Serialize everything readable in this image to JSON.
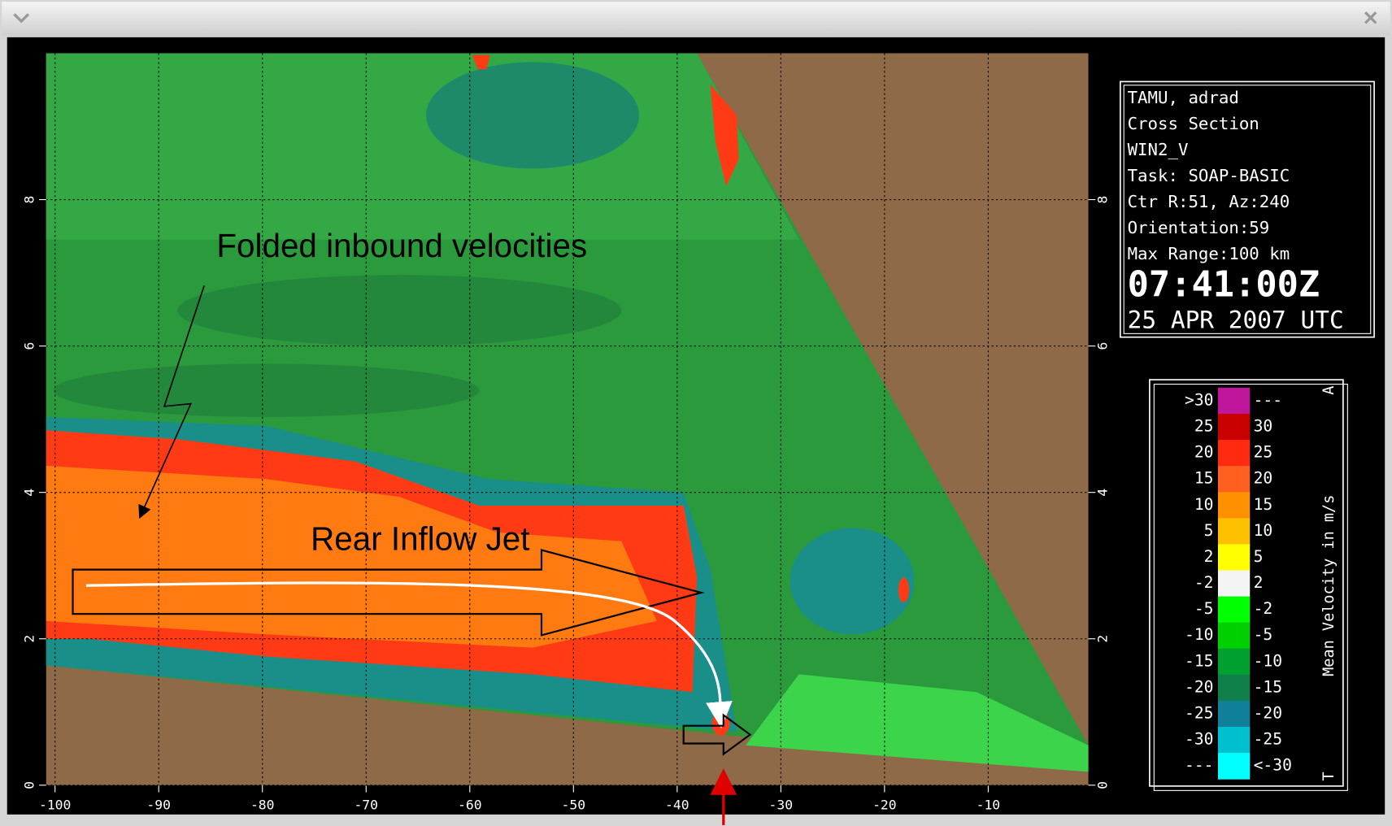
{
  "info": {
    "lines": [
      "TAMU, adrad",
      "Cross Section",
      "WIN2_V",
      "Task: SOAP-BASIC",
      "Ctr R:51, Az:240",
      "Orientation:59",
      "Max Range:100 km"
    ],
    "time": "07:41:00Z",
    "date": "25 APR 2007 UTC"
  },
  "annotations": {
    "folded": "Folded inbound velocities",
    "jet": "Rear Inflow Jet"
  },
  "x_axis": {
    "labels": [
      "-100",
      "-90",
      "-80",
      "-70",
      "-60",
      "-50",
      "-40",
      "-30",
      "-20",
      "-10"
    ]
  },
  "y_axis": {
    "labels": [
      "0",
      "2",
      "4",
      "6",
      "8"
    ]
  },
  "legend": {
    "title": "Mean Velocity in m/s",
    "top_mark": "A",
    "bottom_mark": "T",
    "left": [
      ">30",
      "25",
      "20",
      "15",
      "10",
      "5",
      "2",
      "-2",
      "-5",
      "-10",
      "-15",
      "-20",
      "-25",
      "-30",
      "---"
    ],
    "right": [
      "---",
      "30",
      "25",
      "20",
      "15",
      "10",
      "5",
      "2",
      "-2",
      "-5",
      "-10",
      "-15",
      "-20",
      "-25",
      "<-30"
    ],
    "colors": [
      "#c0169c",
      "#c80000",
      "#ff2a10",
      "#ff6020",
      "#ff9000",
      "#ffc000",
      "#ffff00",
      "#f4f4f4",
      "#00ff00",
      "#00d000",
      "#00a030",
      "#10804a",
      "#10809a",
      "#00c0d0",
      "#00ffff"
    ]
  }
}
